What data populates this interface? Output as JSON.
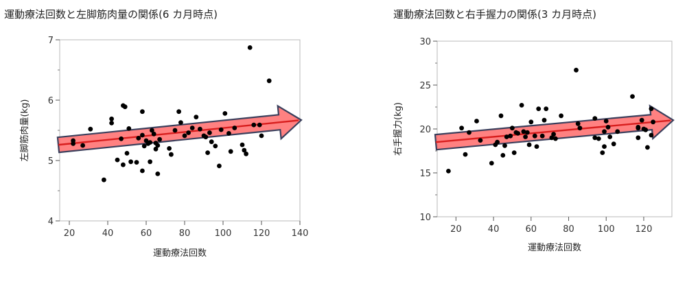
{
  "chart_data": [
    {
      "id": "left",
      "type": "scatter",
      "title": "運動療法回数と左脚筋肉量の関係(6 カ月時点)",
      "xlabel": "運動療法回数",
      "ylabel": "左脚筋肉量(kg)",
      "xlim": [
        15,
        140
      ],
      "ylim": [
        4,
        7
      ],
      "xticks": [
        20,
        40,
        60,
        80,
        100,
        120,
        140
      ],
      "yticks": [
        4,
        5,
        6,
        7
      ],
      "yminor": [
        4.5,
        5.5,
        6.5
      ],
      "grid": false,
      "points": [
        [
          22,
          5.28
        ],
        [
          22,
          5.33
        ],
        [
          27,
          5.25
        ],
        [
          31,
          5.52
        ],
        [
          38,
          4.68
        ],
        [
          42,
          5.69
        ],
        [
          42,
          5.62
        ],
        [
          45,
          5.01
        ],
        [
          47,
          5.36
        ],
        [
          48,
          5.91
        ],
        [
          48,
          4.93
        ],
        [
          49,
          5.89
        ],
        [
          50,
          5.12
        ],
        [
          51,
          5.53
        ],
        [
          52,
          4.98
        ],
        [
          55,
          4.97
        ],
        [
          56,
          5.37
        ],
        [
          58,
          5.42
        ],
        [
          58,
          5.81
        ],
        [
          58,
          4.83
        ],
        [
          59,
          5.24
        ],
        [
          60,
          5.33
        ],
        [
          61,
          5.28
        ],
        [
          62,
          5.3
        ],
        [
          62,
          4.98
        ],
        [
          63,
          5.5
        ],
        [
          64,
          5.44
        ],
        [
          65,
          5.29
        ],
        [
          65,
          5.19
        ],
        [
          66,
          4.78
        ],
        [
          66,
          5.25
        ],
        [
          67,
          5.35
        ],
        [
          72,
          5.2
        ],
        [
          73,
          5.1
        ],
        [
          75,
          5.5
        ],
        [
          77,
          5.81
        ],
        [
          78,
          5.63
        ],
        [
          80,
          5.41
        ],
        [
          82,
          5.46
        ],
        [
          84,
          5.54
        ],
        [
          86,
          5.72
        ],
        [
          88,
          5.52
        ],
        [
          90,
          5.41
        ],
        [
          91,
          5.39
        ],
        [
          92,
          5.13
        ],
        [
          93,
          5.46
        ],
        [
          94,
          5.31
        ],
        [
          96,
          5.24
        ],
        [
          98,
          4.91
        ],
        [
          99,
          5.51
        ],
        [
          101,
          5.78
        ],
        [
          103,
          5.45
        ],
        [
          104,
          5.15
        ],
        [
          106,
          5.54
        ],
        [
          110,
          5.26
        ],
        [
          111,
          5.17
        ],
        [
          112,
          5.11
        ],
        [
          114,
          6.87
        ],
        [
          116,
          5.59
        ],
        [
          119,
          5.59
        ],
        [
          120,
          5.41
        ],
        [
          124,
          6.32
        ]
      ],
      "trend": {
        "x": [
          15,
          140
        ],
        "y": [
          5.26,
          5.67
        ]
      }
    },
    {
      "id": "right",
      "type": "scatter",
      "title": "運動療法回数と右手握力の関係(3 カ月時点)",
      "xlabel": "運動療法回数",
      "ylabel": "右手握力(kg)",
      "xlim": [
        10,
        135
      ],
      "ylim": [
        10,
        30
      ],
      "xticks": [
        20,
        40,
        60,
        80,
        100,
        120
      ],
      "yticks": [
        10,
        15,
        20,
        25,
        30
      ],
      "yminor": [
        12.5,
        17.5,
        22.5,
        27.5
      ],
      "grid": false,
      "points": [
        [
          16,
          15.2
        ],
        [
          23,
          20.1
        ],
        [
          25,
          17.1
        ],
        [
          27,
          19.6
        ],
        [
          31,
          20.9
        ],
        [
          33,
          18.7
        ],
        [
          39,
          16.1
        ],
        [
          41,
          18.2
        ],
        [
          42,
          18.5
        ],
        [
          44,
          21.5
        ],
        [
          45,
          17.0
        ],
        [
          46,
          18.1
        ],
        [
          47,
          19.1
        ],
        [
          49,
          19.2
        ],
        [
          50,
          20.1
        ],
        [
          51,
          17.3
        ],
        [
          52,
          19.6
        ],
        [
          53,
          19.5
        ],
        [
          55,
          22.7
        ],
        [
          56,
          19.7
        ],
        [
          57,
          19.1
        ],
        [
          58,
          19.6
        ],
        [
          59,
          18.2
        ],
        [
          60,
          20.8
        ],
        [
          62,
          19.2
        ],
        [
          63,
          18.0
        ],
        [
          64,
          22.3
        ],
        [
          66,
          19.2
        ],
        [
          67,
          21.0
        ],
        [
          68,
          22.3
        ],
        [
          71,
          19.0
        ],
        [
          72,
          19.4
        ],
        [
          73,
          18.9
        ],
        [
          76,
          21.5
        ],
        [
          84,
          26.7
        ],
        [
          85,
          20.6
        ],
        [
          86,
          20.1
        ],
        [
          94,
          21.2
        ],
        [
          94,
          19.0
        ],
        [
          96,
          18.9
        ],
        [
          98,
          17.3
        ],
        [
          99,
          18.0
        ],
        [
          99,
          19.7
        ],
        [
          100,
          20.9
        ],
        [
          101,
          20.2
        ],
        [
          102,
          19.1
        ],
        [
          104,
          18.3
        ],
        [
          106,
          19.7
        ],
        [
          114,
          23.7
        ],
        [
          117,
          20.2
        ],
        [
          117,
          20.1
        ],
        [
          117,
          19.0
        ],
        [
          119,
          21.0
        ],
        [
          120,
          20.0
        ],
        [
          121,
          19.9
        ],
        [
          122,
          17.9
        ],
        [
          124,
          19.3
        ],
        [
          124,
          22.3
        ],
        [
          125,
          20.8
        ]
      ],
      "trend": {
        "x": [
          10,
          135
        ],
        "y": [
          18.5,
          21.0
        ]
      }
    }
  ]
}
